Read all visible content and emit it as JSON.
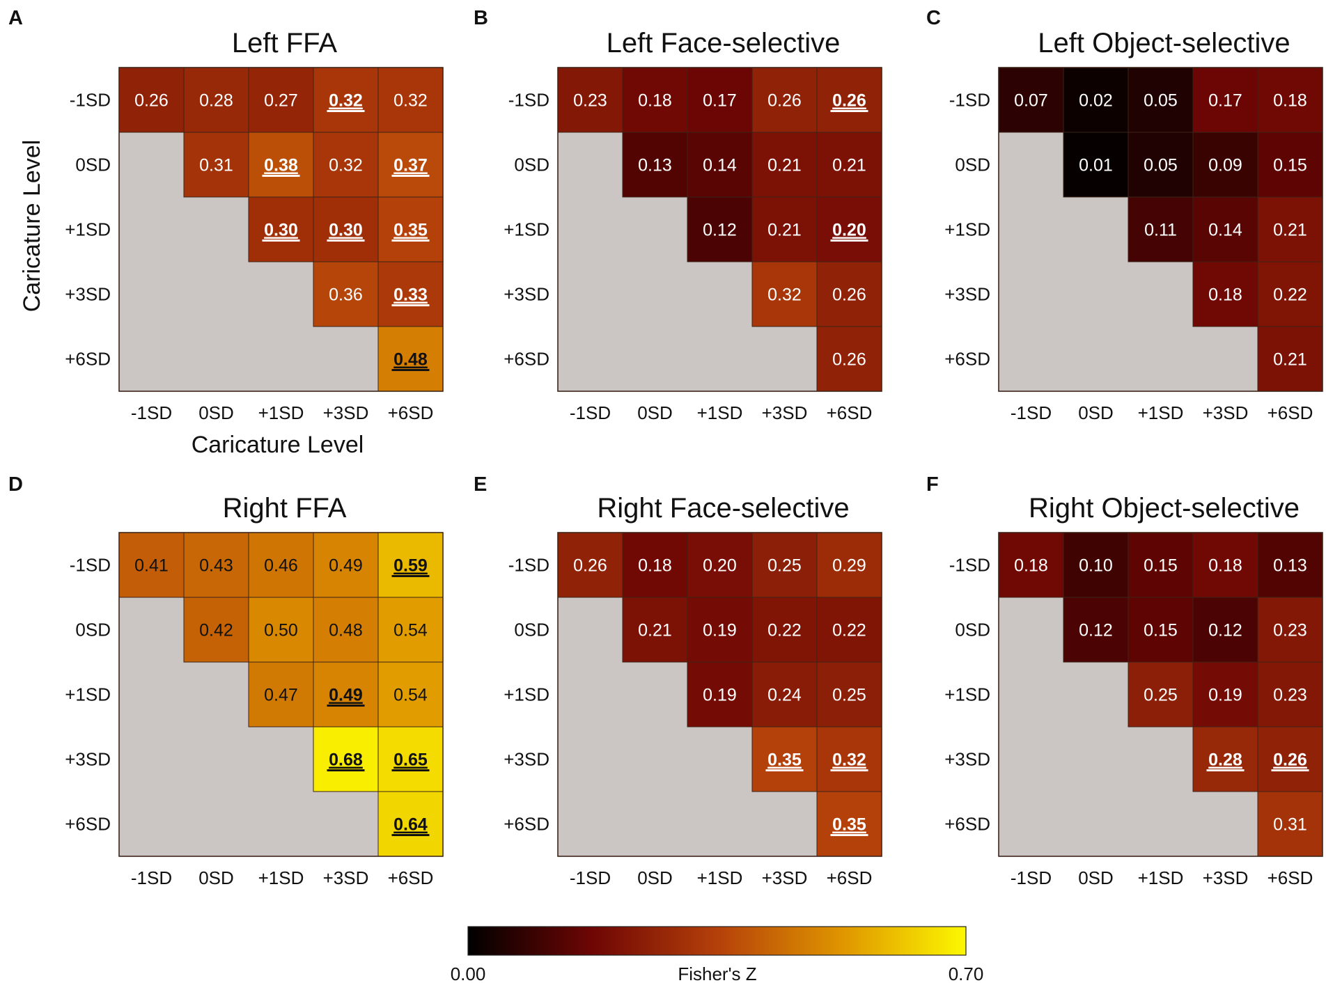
{
  "chart_data": [
    {
      "panel": "A",
      "type": "heatmap",
      "title": "Left FFA",
      "xlabel": "Caricature Level",
      "ylabel": "Caricature Level",
      "rows": [
        "-1SD",
        "0SD",
        "+1SD",
        "+3SD",
        "+6SD"
      ],
      "cols": [
        "-1SD",
        "0SD",
        "+1SD",
        "+3SD",
        "+6SD"
      ],
      "values": [
        [
          0.26,
          0.28,
          0.27,
          0.32,
          0.32
        ],
        [
          null,
          0.31,
          0.38,
          0.32,
          0.37
        ],
        [
          null,
          null,
          0.3,
          0.3,
          0.35
        ],
        [
          null,
          null,
          null,
          0.36,
          0.33
        ],
        [
          null,
          null,
          null,
          null,
          0.48
        ]
      ],
      "significant": [
        [
          0,
          3
        ],
        [
          1,
          2
        ],
        [
          1,
          4
        ],
        [
          2,
          2
        ],
        [
          2,
          3
        ],
        [
          2,
          4
        ],
        [
          3,
          4
        ],
        [
          4,
          4
        ]
      ]
    },
    {
      "panel": "B",
      "type": "heatmap",
      "title": "Left Face-selective",
      "xlabel": "",
      "ylabel": "",
      "rows": [
        "-1SD",
        "0SD",
        "+1SD",
        "+3SD",
        "+6SD"
      ],
      "cols": [
        "-1SD",
        "0SD",
        "+1SD",
        "+3SD",
        "+6SD"
      ],
      "values": [
        [
          0.23,
          0.18,
          0.17,
          0.26,
          0.26
        ],
        [
          null,
          0.13,
          0.14,
          0.21,
          0.21
        ],
        [
          null,
          null,
          0.12,
          0.21,
          0.2
        ],
        [
          null,
          null,
          null,
          0.32,
          0.26
        ],
        [
          null,
          null,
          null,
          null,
          0.26
        ]
      ],
      "significant": [
        [
          0,
          4
        ],
        [
          2,
          4
        ]
      ]
    },
    {
      "panel": "C",
      "type": "heatmap",
      "title": "Left Object-selective",
      "xlabel": "",
      "ylabel": "",
      "rows": [
        "-1SD",
        "0SD",
        "+1SD",
        "+3SD",
        "+6SD"
      ],
      "cols": [
        "-1SD",
        "0SD",
        "+1SD",
        "+3SD",
        "+6SD"
      ],
      "values": [
        [
          0.07,
          0.02,
          0.05,
          0.17,
          0.18
        ],
        [
          null,
          0.01,
          0.05,
          0.09,
          0.15
        ],
        [
          null,
          null,
          0.11,
          0.14,
          0.21
        ],
        [
          null,
          null,
          null,
          0.18,
          0.22
        ],
        [
          null,
          null,
          null,
          null,
          0.21
        ]
      ],
      "significant": []
    },
    {
      "panel": "D",
      "type": "heatmap",
      "title": "Right FFA",
      "xlabel": "",
      "ylabel": "",
      "rows": [
        "-1SD",
        "0SD",
        "+1SD",
        "+3SD",
        "+6SD"
      ],
      "cols": [
        "-1SD",
        "0SD",
        "+1SD",
        "+3SD",
        "+6SD"
      ],
      "values": [
        [
          0.41,
          0.43,
          0.46,
          0.49,
          0.59
        ],
        [
          null,
          0.42,
          0.5,
          0.48,
          0.54
        ],
        [
          null,
          null,
          0.47,
          0.49,
          0.54
        ],
        [
          null,
          null,
          null,
          0.68,
          0.65
        ],
        [
          null,
          null,
          null,
          null,
          0.64
        ]
      ],
      "significant": [
        [
          0,
          4
        ],
        [
          2,
          3
        ],
        [
          3,
          3
        ],
        [
          3,
          4
        ],
        [
          4,
          4
        ]
      ]
    },
    {
      "panel": "E",
      "type": "heatmap",
      "title": "Right Face-selective",
      "xlabel": "",
      "ylabel": "",
      "rows": [
        "-1SD",
        "0SD",
        "+1SD",
        "+3SD",
        "+6SD"
      ],
      "cols": [
        "-1SD",
        "0SD",
        "+1SD",
        "+3SD",
        "+6SD"
      ],
      "values": [
        [
          0.26,
          0.18,
          0.2,
          0.25,
          0.29
        ],
        [
          null,
          0.21,
          0.19,
          0.22,
          0.22
        ],
        [
          null,
          null,
          0.19,
          0.24,
          0.25
        ],
        [
          null,
          null,
          null,
          0.35,
          0.32
        ],
        [
          null,
          null,
          null,
          null,
          0.35
        ]
      ],
      "significant": [
        [
          3,
          3
        ],
        [
          3,
          4
        ],
        [
          4,
          4
        ]
      ]
    },
    {
      "panel": "F",
      "type": "heatmap",
      "title": "Right Object-selective",
      "xlabel": "",
      "ylabel": "",
      "rows": [
        "-1SD",
        "0SD",
        "+1SD",
        "+3SD",
        "+6SD"
      ],
      "cols": [
        "-1SD",
        "0SD",
        "+1SD",
        "+3SD",
        "+6SD"
      ],
      "values": [
        [
          0.18,
          0.1,
          0.15,
          0.18,
          0.13
        ],
        [
          null,
          0.12,
          0.15,
          0.12,
          0.23
        ],
        [
          null,
          null,
          0.25,
          0.19,
          0.23
        ],
        [
          null,
          null,
          null,
          0.28,
          0.26
        ],
        [
          null,
          null,
          null,
          null,
          0.31
        ]
      ],
      "significant": [
        [
          3,
          3
        ],
        [
          3,
          4
        ]
      ]
    }
  ],
  "colorbar": {
    "label": "Fisher's Z",
    "min": 0.0,
    "max": 0.7,
    "min_label": "0.00",
    "max_label": "0.70",
    "colormap": "hot",
    "stops": [
      "#000000",
      "#6e0604",
      "#b4400a",
      "#df9500",
      "#fcf800"
    ]
  },
  "colors": {
    "masked_cell": "#cbc6c3",
    "cell_border": "#3c2418",
    "text": "#111111",
    "light_label": "#ffffff",
    "dark_label": "#111111"
  }
}
